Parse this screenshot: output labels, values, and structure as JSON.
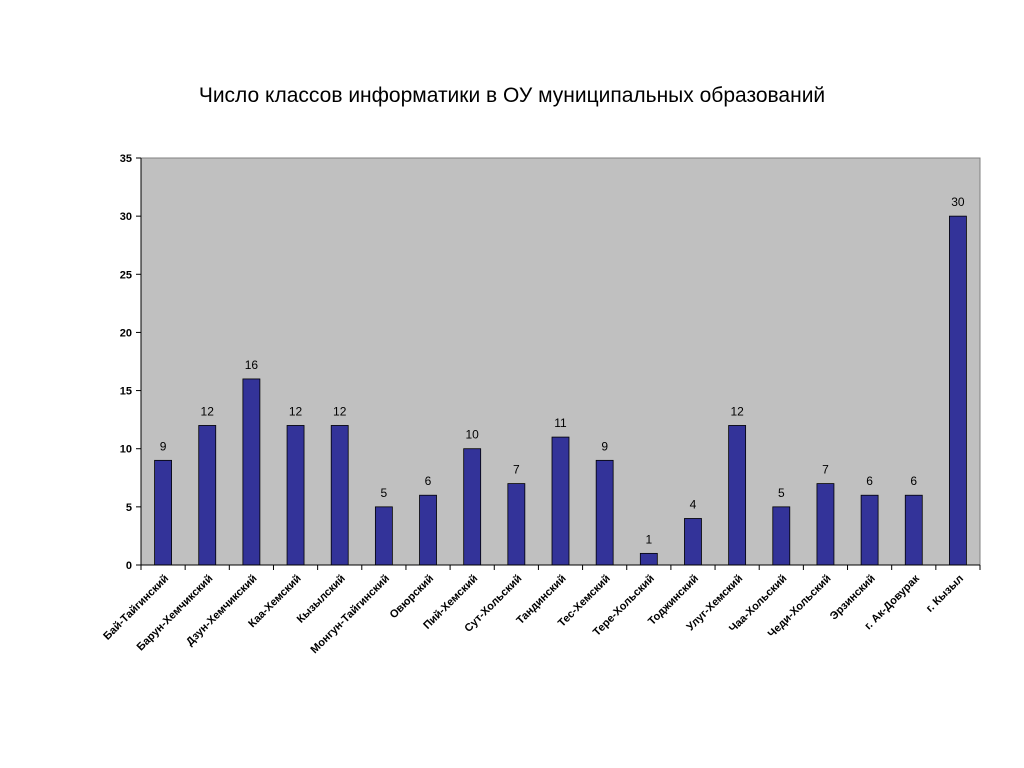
{
  "chart_data": {
    "type": "bar",
    "title": "Число классов информатики в ОУ муниципальных образований",
    "xlabel": "",
    "ylabel": "",
    "ylim": [
      0,
      35
    ],
    "yticks": [
      0,
      5,
      10,
      15,
      20,
      25,
      30,
      35
    ],
    "grid": false,
    "legend": "none",
    "colors": {
      "bar": "#333399",
      "plot_background": "#c0c0c0",
      "axis": "#000000"
    },
    "categories": [
      "Бай-Тайгинский",
      "Барун-Хемчикский",
      "Дзун-Хемчикский",
      "Каа-Хемский",
      "Кызылский",
      "Монгун-Тайгинский",
      "Овюрский",
      "Пий-Хемский",
      "Сут-Хольский",
      "Тандинский",
      "Тес-Хемский",
      "Тере-Хольский",
      "Тоджинский",
      "Улуг-Хемский",
      "Чаа-Хольский",
      "Чеди-Хольский",
      "Эрзинский",
      "г. Ак-Довурак",
      "г. Кызыл"
    ],
    "values": [
      9,
      12,
      16,
      12,
      12,
      5,
      6,
      10,
      7,
      11,
      9,
      1,
      4,
      12,
      5,
      7,
      6,
      6,
      30
    ]
  }
}
